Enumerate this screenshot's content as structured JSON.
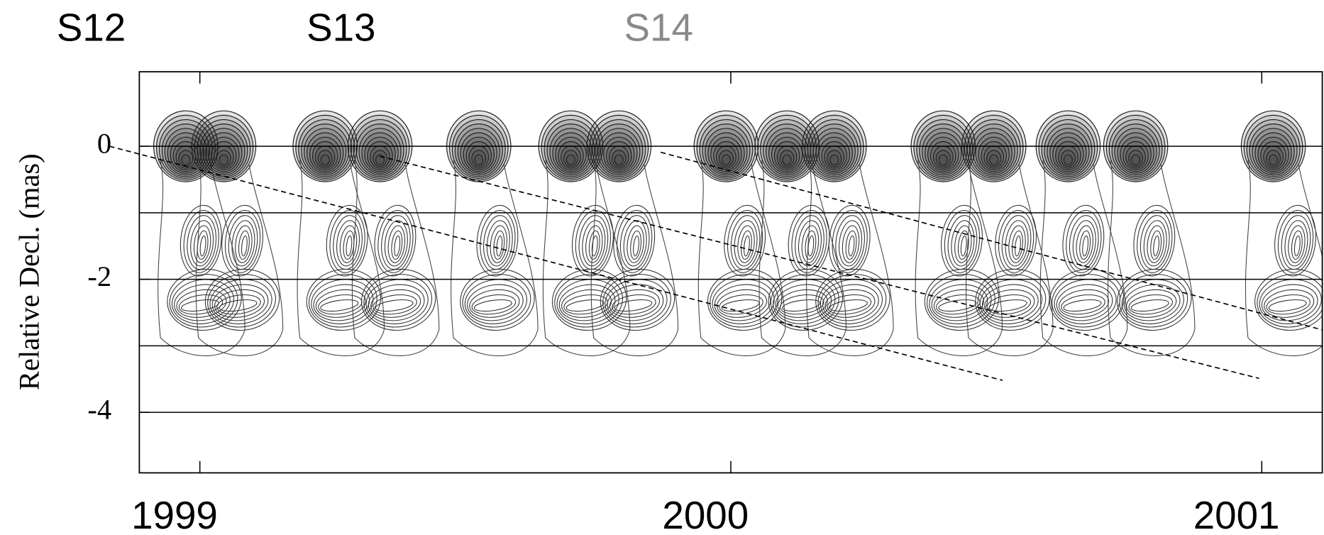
{
  "chart_data": {
    "type": "line",
    "ylabel": "Relative Decl. (mas)",
    "annotations": [
      {
        "text": "S12",
        "color": "#000000"
      },
      {
        "text": "S13",
        "color": "#000000"
      },
      {
        "text": "S14",
        "color": "#8a8a8a"
      }
    ],
    "xlim": [
      1998.886,
      2001.114
    ],
    "ylim": [
      -4.91,
      1.12
    ],
    "xticks": [
      1999,
      2000,
      2001
    ],
    "yticks": [
      0,
      -2,
      -4
    ],
    "hlines": [
      0,
      -1,
      -2,
      -3,
      -4
    ],
    "series": [
      {
        "x": [
          1998.83,
          2000.512
        ],
        "values": [
          0,
          -3.52
        ],
        "color": "#000000",
        "dash": true
      },
      {
        "x": [
          1999.339,
          2000.995
        ],
        "values": [
          -0.15,
          -3.49
        ],
        "color": "#000000",
        "dash": true
      },
      {
        "x": [
          1999.868,
          2001.114
        ],
        "values": [
          -0.09,
          -2.76
        ],
        "color": "#000000",
        "dash": true
      }
    ]
  }
}
